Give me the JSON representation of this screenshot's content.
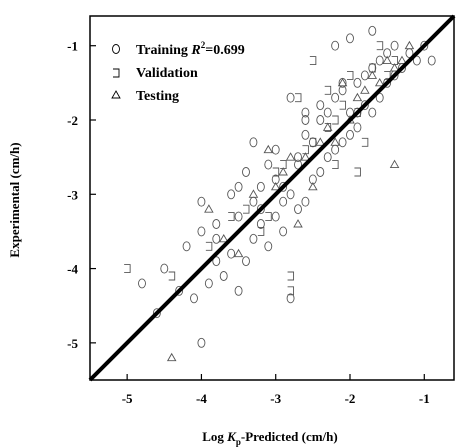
{
  "chart_data": {
    "type": "scatter",
    "xlabel": "Log K_p-Predicted (cm/h)",
    "xlabel_parts": {
      "pre": "Log ",
      "k": "K",
      "sub": "p",
      "post": "-Predicted (cm/h)"
    },
    "ylabel": "Experimental (cm/h)",
    "xlim": [
      -5.5,
      -0.6
    ],
    "ylim": [
      -5.5,
      -0.6
    ],
    "xticks": [
      -5,
      -4,
      -3,
      -2,
      -1
    ],
    "yticks": [
      -5,
      -4,
      -3,
      -2,
      -1
    ],
    "grid": false,
    "legend_placement": "top-left",
    "fit_line": {
      "x": [
        -5.5,
        -0.6
      ],
      "y": [
        -5.5,
        -0.6
      ]
    },
    "series": [
      {
        "name": "Training R²=0.699",
        "name_parts": {
          "pre": "Training ",
          "r": "R",
          "sup": "2",
          "post": "=0.699"
        },
        "marker": "circle",
        "x": [
          -4.8,
          -4.6,
          -4.5,
          -4.3,
          -4.2,
          -4.1,
          -4.0,
          -4.0,
          -3.9,
          -3.8,
          -3.8,
          -3.7,
          -3.6,
          -3.6,
          -3.5,
          -3.5,
          -3.4,
          -3.4,
          -3.3,
          -3.3,
          -3.2,
          -3.2,
          -3.1,
          -3.1,
          -3.0,
          -3.0,
          -3.0,
          -2.9,
          -2.9,
          -2.8,
          -2.8,
          -2.7,
          -2.7,
          -2.6,
          -2.6,
          -2.5,
          -2.5,
          -2.4,
          -2.4,
          -2.3,
          -2.3,
          -2.2,
          -2.2,
          -2.1,
          -2.1,
          -2.0,
          -2.0,
          -1.9,
          -1.9,
          -1.8,
          -1.8,
          -1.7,
          -1.7,
          -1.6,
          -1.6,
          -1.5,
          -1.5,
          -1.4,
          -1.4,
          -1.3,
          -1.2,
          -1.1,
          -1.0,
          -0.9,
          -4.0,
          -3.2,
          -2.9,
          -2.7,
          -3.5,
          -3.8,
          -2.6,
          -2.2,
          -2.0,
          -1.7,
          -2.8,
          -3.3,
          -2.4,
          -1.9,
          -2.6,
          -2.1
        ],
        "y": [
          -4.2,
          -4.6,
          -4.0,
          -4.3,
          -3.7,
          -4.4,
          -3.1,
          -5.0,
          -4.2,
          -3.9,
          -3.4,
          -4.1,
          -3.8,
          -3.0,
          -4.3,
          -3.3,
          -3.9,
          -2.7,
          -3.6,
          -3.1,
          -3.4,
          -2.9,
          -3.7,
          -2.6,
          -3.3,
          -2.8,
          -2.4,
          -3.5,
          -2.9,
          -4.4,
          -3.0,
          -3.2,
          -2.5,
          -3.1,
          -2.2,
          -2.8,
          -2.3,
          -2.7,
          -2.0,
          -2.5,
          -1.9,
          -2.4,
          -1.7,
          -2.3,
          -1.6,
          -2.2,
          -1.9,
          -2.1,
          -1.5,
          -1.8,
          -1.4,
          -1.9,
          -1.3,
          -1.7,
          -1.2,
          -1.5,
          -1.1,
          -1.4,
          -1.0,
          -1.3,
          -1.1,
          -1.2,
          -1.0,
          -1.2,
          -3.5,
          -3.2,
          -3.1,
          -2.6,
          -2.9,
          -3.6,
          -1.9,
          -1.0,
          -0.9,
          -0.8,
          -1.7,
          -2.3,
          -1.8,
          -1.9,
          -2.0,
          -1.5
        ]
      },
      {
        "name": "Validation",
        "marker": "square",
        "x": [
          -5.0,
          -4.4,
          -3.9,
          -3.6,
          -3.4,
          -3.2,
          -3.0,
          -2.9,
          -2.8,
          -2.8,
          -2.7,
          -2.6,
          -2.5,
          -2.3,
          -2.2,
          -2.1,
          -2.0,
          -1.9,
          -1.8,
          -1.7,
          -1.6,
          -1.5,
          -1.4,
          -2.5,
          -2.3,
          -1.9,
          -3.1,
          -2.2
        ],
        "y": [
          -4.0,
          -4.1,
          -3.7,
          -3.3,
          -3.2,
          -3.5,
          -2.7,
          -2.6,
          -4.1,
          -4.3,
          -1.7,
          -2.4,
          -2.3,
          -1.6,
          -2.0,
          -1.8,
          -1.4,
          -1.9,
          -2.3,
          -1.3,
          -1.0,
          -1.4,
          -1.2,
          -1.2,
          -2.1,
          -2.7,
          -3.3,
          -2.6
        ]
      },
      {
        "name": "Testing",
        "marker": "triangle",
        "x": [
          -4.4,
          -3.9,
          -3.7,
          -3.5,
          -3.3,
          -3.1,
          -2.9,
          -2.7,
          -2.6,
          -2.5,
          -2.4,
          -2.3,
          -2.2,
          -2.1,
          -2.0,
          -1.9,
          -1.8,
          -1.7,
          -1.6,
          -1.5,
          -1.4,
          -1.3,
          -1.2,
          -1.4,
          -2.8,
          -3.0
        ],
        "y": [
          -5.2,
          -3.2,
          -3.6,
          -3.8,
          -3.0,
          -2.4,
          -2.7,
          -3.4,
          -2.5,
          -2.9,
          -2.3,
          -2.1,
          -2.3,
          -1.5,
          -2.0,
          -1.7,
          -1.6,
          -1.4,
          -1.5,
          -1.2,
          -1.3,
          -1.2,
          -1.0,
          -2.6,
          -2.5,
          -2.9
        ]
      }
    ]
  }
}
